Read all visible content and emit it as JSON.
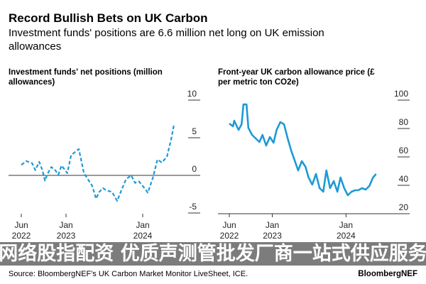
{
  "title": "Record Bullish Bets on UK Carbon",
  "subtitle_line1": "Investment funds' positions are 6.6 million net long on UK emission",
  "subtitle_line2": "allowances",
  "source": "Source: BloombergNEF's UK Carbon Market Monitor LiveSheet, ICE.",
  "brand": "BloombergNEF",
  "banner_text": "网络股指配资 优质声测管批发厂商一站式供应服务",
  "colors": {
    "line": "#1d9ad6",
    "axis": "#222222"
  },
  "chart_data": [
    {
      "type": "line",
      "title_line1": "Investment funds' net positions (million",
      "title_line2": "allowances)",
      "style": "dashed",
      "x_unit": "months since Jun 2022",
      "xticks": [
        {
          "t": 0,
          "l1": "Jun",
          "l2": "2022"
        },
        {
          "t": 7,
          "l1": "Jan",
          "l2": "2023"
        },
        {
          "t": 19,
          "l1": "Jan",
          "l2": "2024"
        }
      ],
      "yticks": [
        10,
        5,
        0,
        -5
      ],
      "ylim": [
        -5,
        10
      ],
      "xlim": [
        -1.5,
        26
      ],
      "points": [
        [
          0,
          1.4
        ],
        [
          0.8,
          1.9
        ],
        [
          1.7,
          1.6
        ],
        [
          2.2,
          0.7
        ],
        [
          2.8,
          1.8
        ],
        [
          3.3,
          0.7
        ],
        [
          3.7,
          -0.7
        ],
        [
          4.1,
          0.2
        ],
        [
          4.7,
          1.1
        ],
        [
          5.3,
          0.7
        ],
        [
          5.8,
          0.1
        ],
        [
          6.3,
          1.3
        ],
        [
          7.2,
          0.3
        ],
        [
          7.8,
          2.7
        ],
        [
          9,
          3.5
        ],
        [
          9.8,
          0.3
        ],
        [
          11.1,
          -1.4
        ],
        [
          11.7,
          -3.1
        ],
        [
          12.2,
          -2.2
        ],
        [
          12.8,
          -1.7
        ],
        [
          13.3,
          -2
        ],
        [
          14.2,
          -2.2
        ],
        [
          15,
          -3.4
        ],
        [
          15.8,
          -1.7
        ],
        [
          16.4,
          -0.5
        ],
        [
          17.2,
          0
        ],
        [
          17.8,
          -1
        ],
        [
          18.4,
          -0.8
        ],
        [
          19,
          -1.4
        ],
        [
          19.8,
          -2.3
        ],
        [
          20.6,
          -0.3
        ],
        [
          21.3,
          2.1
        ],
        [
          22,
          1.7
        ],
        [
          22.8,
          2.5
        ],
        [
          23.5,
          5
        ],
        [
          23.9,
          6.8
        ]
      ]
    },
    {
      "type": "line",
      "title_line1": "Front-year UK carbon allowance price (£",
      "title_line2": "per metric ton CO2e)",
      "style": "solid",
      "x_unit": "months since Jun 2022",
      "xticks": [
        {
          "t": 0,
          "l1": "Jun",
          "l2": "2022"
        },
        {
          "t": 7,
          "l1": "Jan",
          "l2": "2023"
        },
        {
          "t": 19,
          "l1": "Jan",
          "l2": "2024"
        }
      ],
      "yticks": [
        100,
        80,
        60,
        40,
        20
      ],
      "ylim": [
        20,
        100
      ],
      "xlim": [
        -0.3,
        27
      ],
      "points": [
        [
          0,
          83.5
        ],
        [
          0.6,
          81.5
        ],
        [
          0.8,
          85.5
        ],
        [
          1.5,
          79
        ],
        [
          2,
          83
        ],
        [
          2.3,
          97
        ],
        [
          2.8,
          97
        ],
        [
          3.1,
          80.5
        ],
        [
          3.7,
          75.5
        ],
        [
          4.3,
          73
        ],
        [
          4.9,
          70.5
        ],
        [
          5.4,
          75.5
        ],
        [
          6,
          68
        ],
        [
          6.6,
          74
        ],
        [
          7.2,
          70
        ],
        [
          7.7,
          79
        ],
        [
          8.3,
          84.5
        ],
        [
          8.9,
          83
        ],
        [
          9.5,
          73
        ],
        [
          10.1,
          64
        ],
        [
          10.6,
          58
        ],
        [
          11.2,
          50.5
        ],
        [
          11.8,
          57
        ],
        [
          12.4,
          53
        ],
        [
          12.9,
          45.5
        ],
        [
          13.5,
          40.5
        ],
        [
          14.1,
          48
        ],
        [
          14.7,
          38
        ],
        [
          15.3,
          35.5
        ],
        [
          15.8,
          50.5
        ],
        [
          16.4,
          38
        ],
        [
          17,
          43
        ],
        [
          17.6,
          35.5
        ],
        [
          18.1,
          45.5
        ],
        [
          18.7,
          38
        ],
        [
          19.3,
          33
        ],
        [
          19.9,
          35.5
        ],
        [
          20.5,
          36.5
        ],
        [
          21,
          36.5
        ],
        [
          21.6,
          38
        ],
        [
          22.2,
          37
        ],
        [
          22.8,
          39.5
        ],
        [
          23.4,
          45.5
        ],
        [
          23.9,
          48
        ]
      ]
    }
  ]
}
